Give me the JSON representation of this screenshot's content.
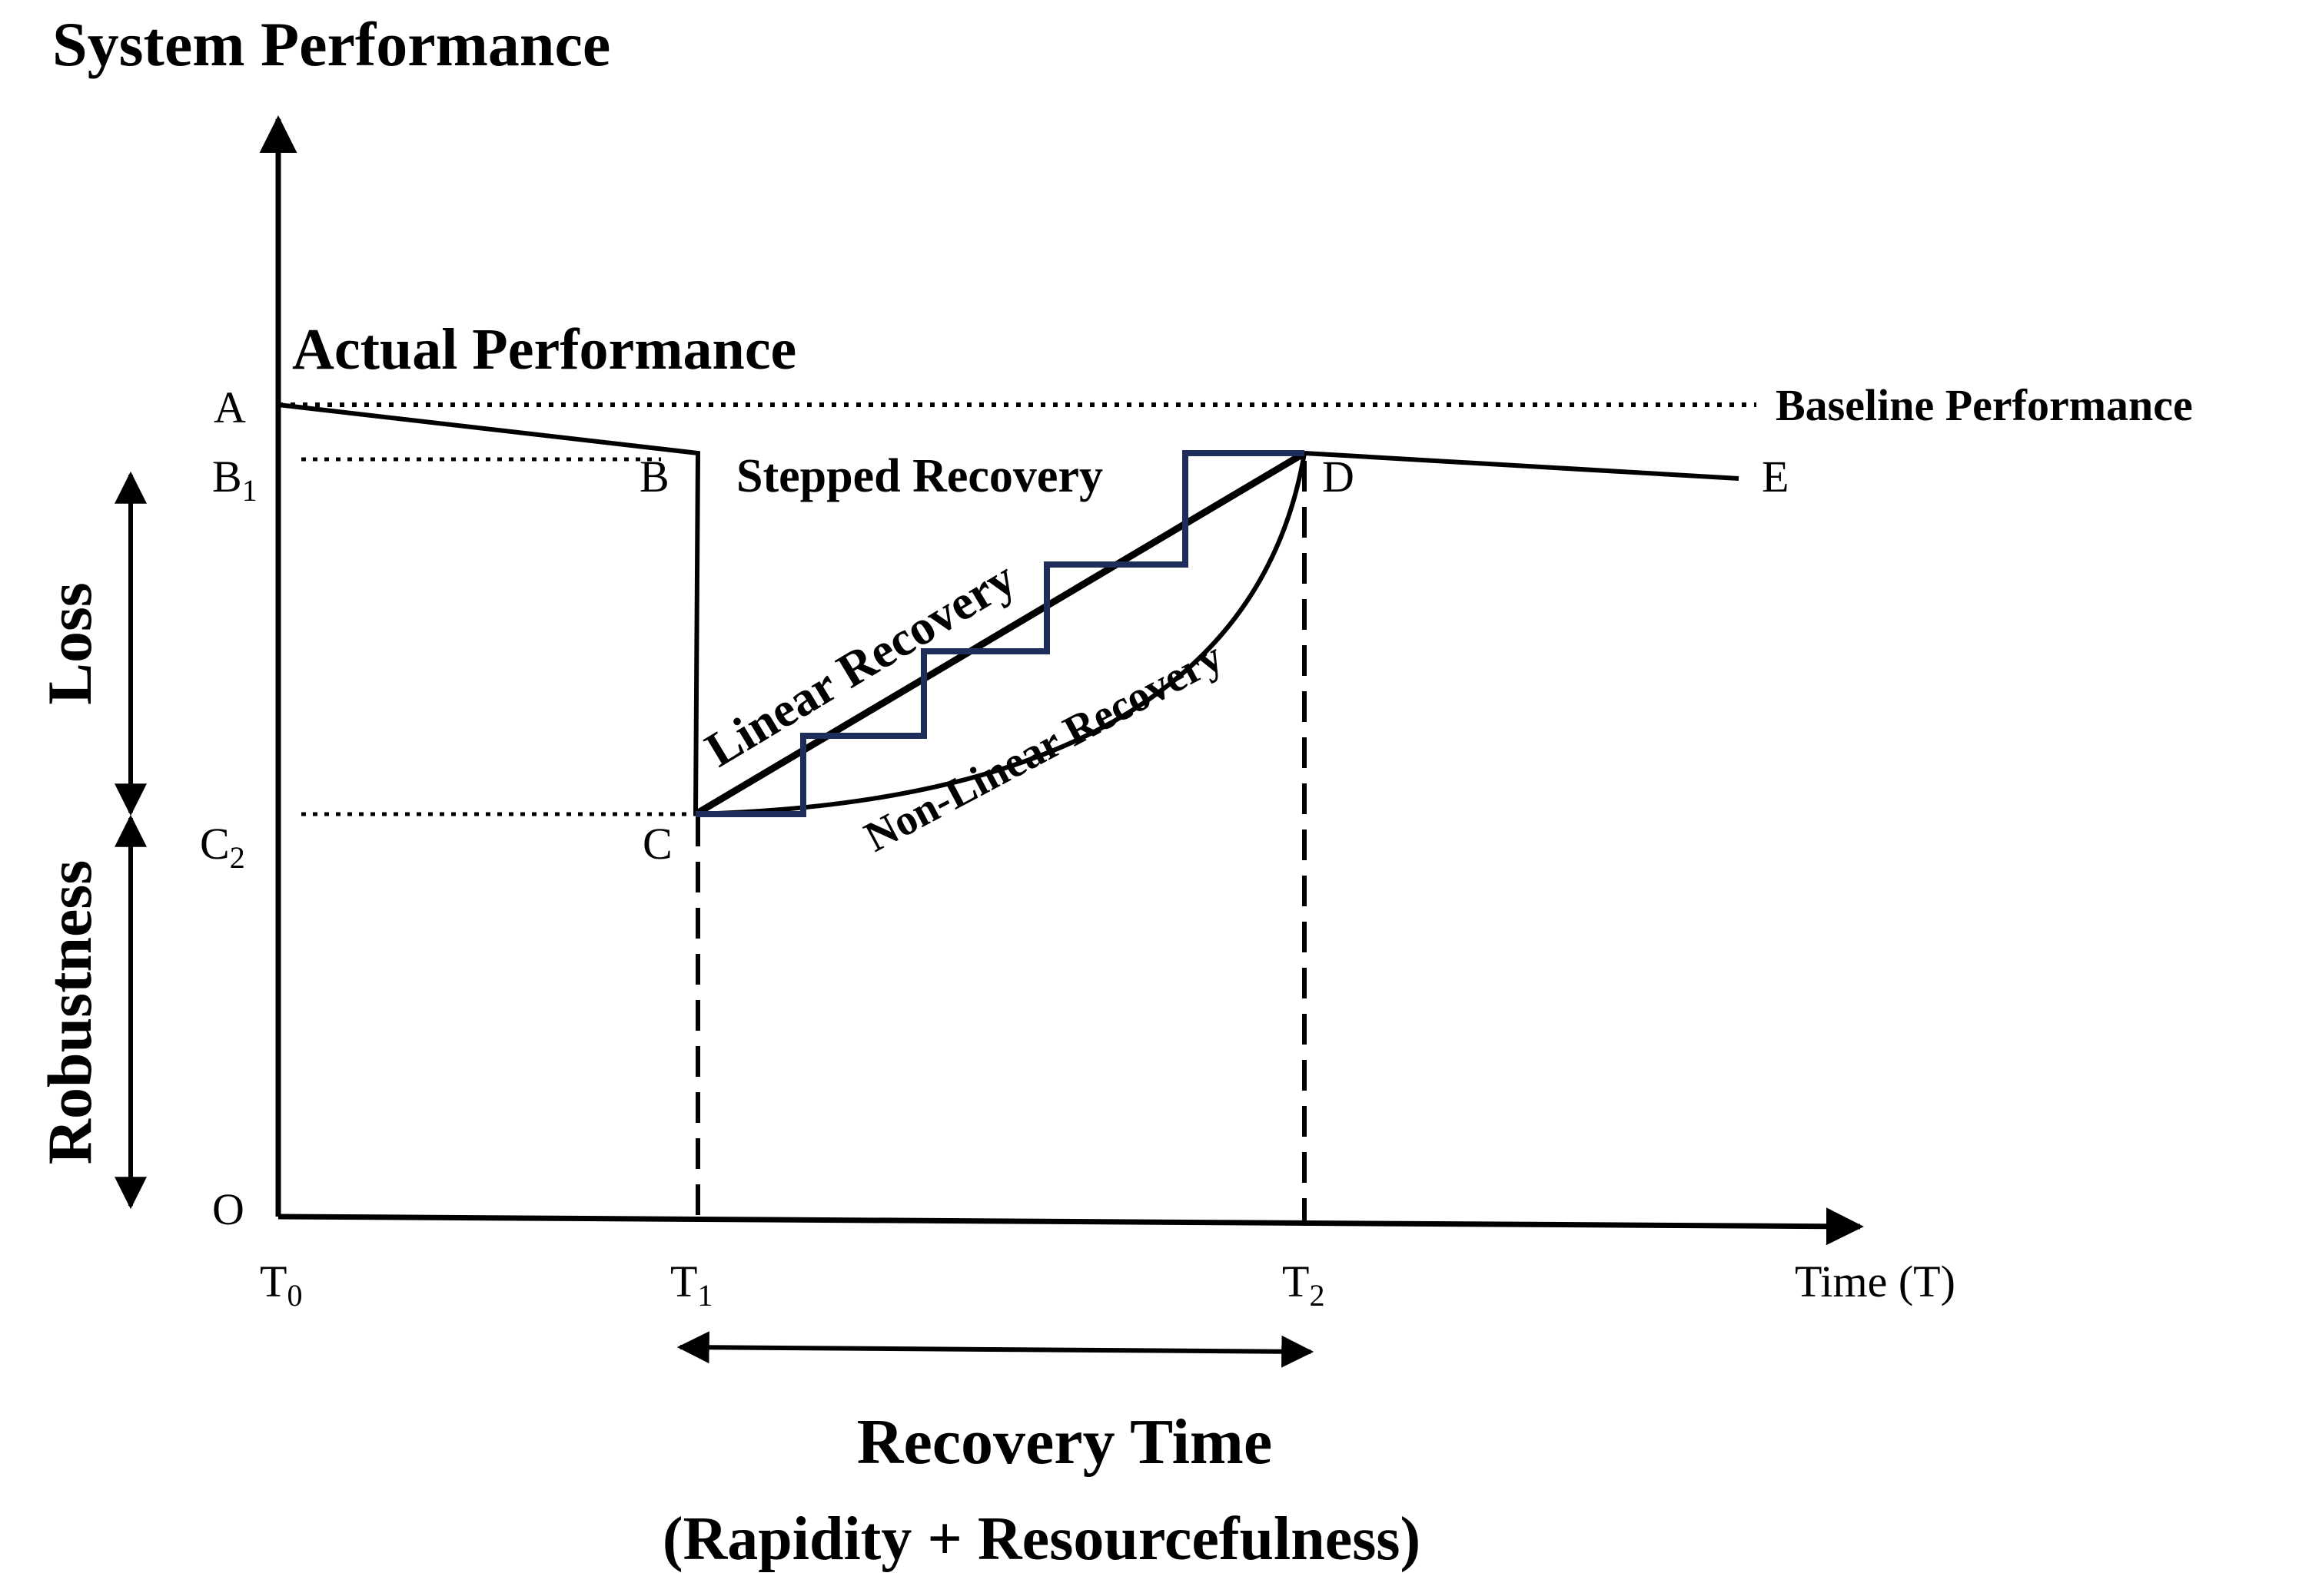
{
  "figure": {
    "y_axis_title": "System Performance",
    "x_axis_label": "Time (T)",
    "actual_performance_label": "Actual Performance",
    "baseline_label": "Baseline Performance",
    "stepped_label": "Stepped Recovery",
    "linear_label": "Linear Recovery",
    "nonlinear_label": "Non-Linear Recovery",
    "loss_label": "Loss",
    "robustness_label": "Robustness",
    "recovery_time_label": "Recovery Time",
    "recovery_sub_label": "(Rapidity + Resourcefulness)",
    "points": {
      "A": "A",
      "B": "B",
      "B1": "B",
      "B1_sub": "1",
      "C": "C",
      "C2": "C",
      "C2_sub": "2",
      "D": "D",
      "E": "E",
      "O": "O"
    },
    "ticks": {
      "T0": "T",
      "T0_sub": "0",
      "T1": "T",
      "T1_sub": "1",
      "T2": "T",
      "T2_sub": "2"
    },
    "colors": {
      "line": "#000000",
      "stepped": "#1f2d5a"
    }
  }
}
